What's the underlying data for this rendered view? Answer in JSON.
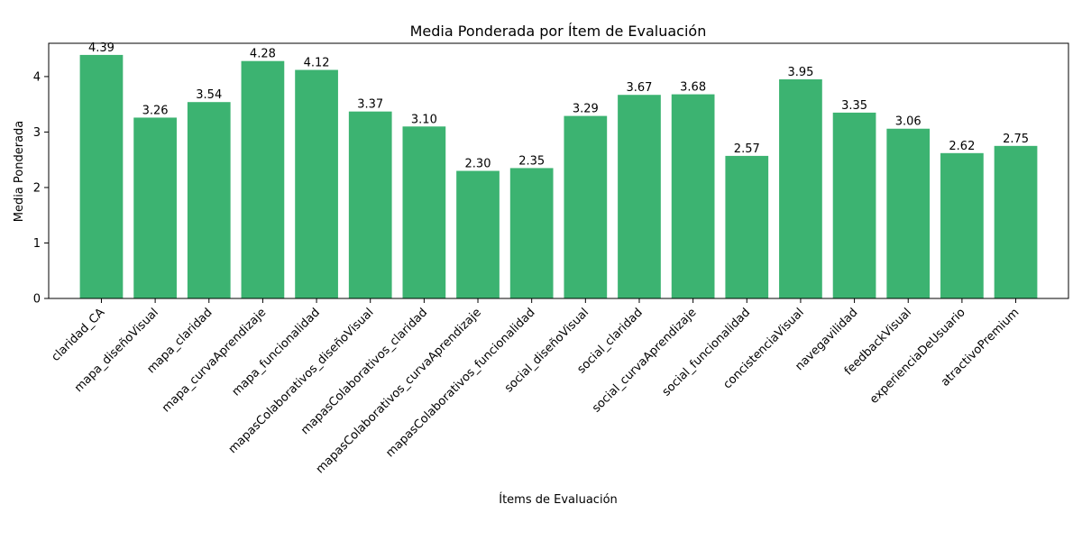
{
  "chart_data": {
    "type": "bar",
    "title": "Media Ponderada por Ítem de Evaluación",
    "xlabel": "Ítems de Evaluación",
    "ylabel": "Media Ponderada",
    "ylim": [
      0,
      4.6
    ],
    "yticks": [
      0,
      1,
      2,
      3,
      4
    ],
    "grid": false,
    "bar_color": "#3cb371",
    "categories": [
      "claridad_CA",
      "mapa_diseñoVisual",
      "mapa_claridad",
      "mapa_curvaAprendizaje",
      "mapa_funcionalidad",
      "mapasColaborativos_diseñoVisual",
      "mapasColaborativos_claridad",
      "mapasColaborativos_curvaAprendizaje",
      "mapasColaborativos_funcionalidad",
      "social_diseñoVisual",
      "social_claridad",
      "social_curvaAprendizaje",
      "social_funcionalidad",
      "concistenciaVisual",
      "navegavilidad",
      "feedbackVisual",
      "experienciaDeUsuario",
      "atractivoPremium"
    ],
    "values": [
      4.39,
      3.26,
      3.54,
      4.28,
      4.12,
      3.37,
      3.1,
      2.3,
      2.35,
      3.29,
      3.67,
      3.68,
      2.57,
      3.95,
      3.35,
      3.06,
      2.62,
      2.75
    ],
    "value_labels": [
      "4.39",
      "3.26",
      "3.54",
      "4.28",
      "4.12",
      "3.37",
      "3.10",
      "2.30",
      "2.35",
      "3.29",
      "3.67",
      "3.68",
      "2.57",
      "3.95",
      "3.35",
      "3.06",
      "2.62",
      "2.75"
    ]
  }
}
